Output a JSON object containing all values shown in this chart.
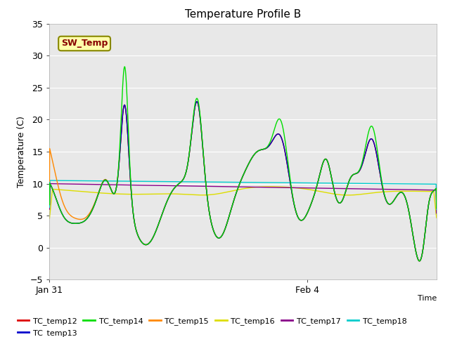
{
  "title": "Temperature Profile B",
  "ylabel": "Temperature (C)",
  "xlabel_text": "Time",
  "ylim": [
    -5,
    35
  ],
  "yticks": [
    -5,
    0,
    5,
    10,
    15,
    20,
    25,
    30,
    35
  ],
  "xlim": [
    0,
    144
  ],
  "xtick_pos": [
    0,
    96
  ],
  "xtick_labels": [
    "Jan 31",
    "Feb 4"
  ],
  "bg_color": "#e8e8e8",
  "grid_color": "#ffffff",
  "legend_entries": [
    "TC_temp12",
    "TC_temp13",
    "TC_temp14",
    "TC_temp15",
    "TC_temp16",
    "TC_temp17",
    "TC_temp18"
  ],
  "legend_colors": [
    "#dd0000",
    "#0000cc",
    "#00dd00",
    "#ff8800",
    "#dddd00",
    "#880088",
    "#00cccc"
  ],
  "sw_temp_label": "SW_Temp",
  "sw_temp_text_color": "#880000",
  "sw_temp_bg": "#ffffaa",
  "sw_temp_edge": "#888800"
}
